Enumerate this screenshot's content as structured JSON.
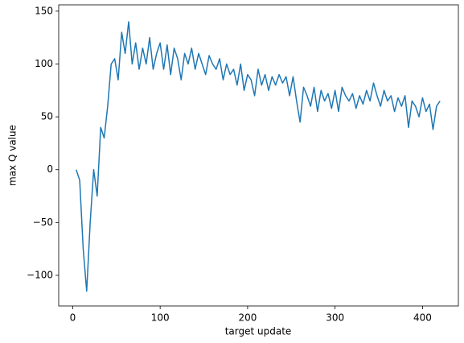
{
  "chart_data": {
    "type": "line",
    "xlabel": "target update",
    "ylabel": "max Q value",
    "x": [
      4,
      8,
      12,
      16,
      20,
      24,
      28,
      32,
      36,
      40,
      44,
      48,
      52,
      56,
      60,
      64,
      68,
      72,
      76,
      80,
      84,
      88,
      92,
      96,
      100,
      104,
      108,
      112,
      116,
      120,
      124,
      128,
      132,
      136,
      140,
      144,
      148,
      152,
      156,
      160,
      164,
      168,
      172,
      176,
      180,
      184,
      188,
      192,
      196,
      200,
      204,
      208,
      212,
      216,
      220,
      224,
      228,
      232,
      236,
      240,
      244,
      248,
      252,
      256,
      260,
      264,
      268,
      272,
      276,
      280,
      284,
      288,
      292,
      296,
      300,
      304,
      308,
      312,
      316,
      320,
      324,
      328,
      332,
      336,
      340,
      344,
      348,
      352,
      356,
      360,
      364,
      368,
      372,
      376,
      380,
      384,
      388,
      392,
      396,
      400,
      404,
      408,
      412,
      416,
      420
    ],
    "series": [
      {
        "name": "max Q value",
        "color": "#1f77b4",
        "values": [
          0,
          -10,
          -75,
          -115,
          -50,
          0,
          -25,
          40,
          30,
          60,
          100,
          105,
          85,
          130,
          110,
          140,
          100,
          120,
          95,
          115,
          100,
          125,
          95,
          110,
          120,
          95,
          118,
          90,
          115,
          105,
          85,
          110,
          100,
          115,
          95,
          110,
          100,
          90,
          108,
          100,
          95,
          105,
          85,
          100,
          90,
          95,
          80,
          100,
          75,
          90,
          85,
          70,
          95,
          80,
          90,
          75,
          88,
          80,
          90,
          82,
          88,
          70,
          88,
          65,
          45,
          78,
          70,
          60,
          78,
          55,
          75,
          65,
          72,
          58,
          75,
          55,
          78,
          70,
          65,
          72,
          58,
          70,
          62,
          75,
          65,
          82,
          70,
          60,
          75,
          65,
          70,
          55,
          68,
          60,
          70,
          40,
          65,
          60,
          50,
          68,
          55,
          62,
          38,
          60,
          65
        ]
      }
    ],
    "xlim": [
      -16,
      441
    ],
    "xticks": [
      0,
      100,
      200,
      300,
      400
    ],
    "ylim": [
      -129,
      156
    ],
    "yticks": [
      {
        "value": -100,
        "label": "−100"
      },
      {
        "value": -50,
        "label": "−50"
      },
      0,
      50,
      100,
      150
    ]
  }
}
